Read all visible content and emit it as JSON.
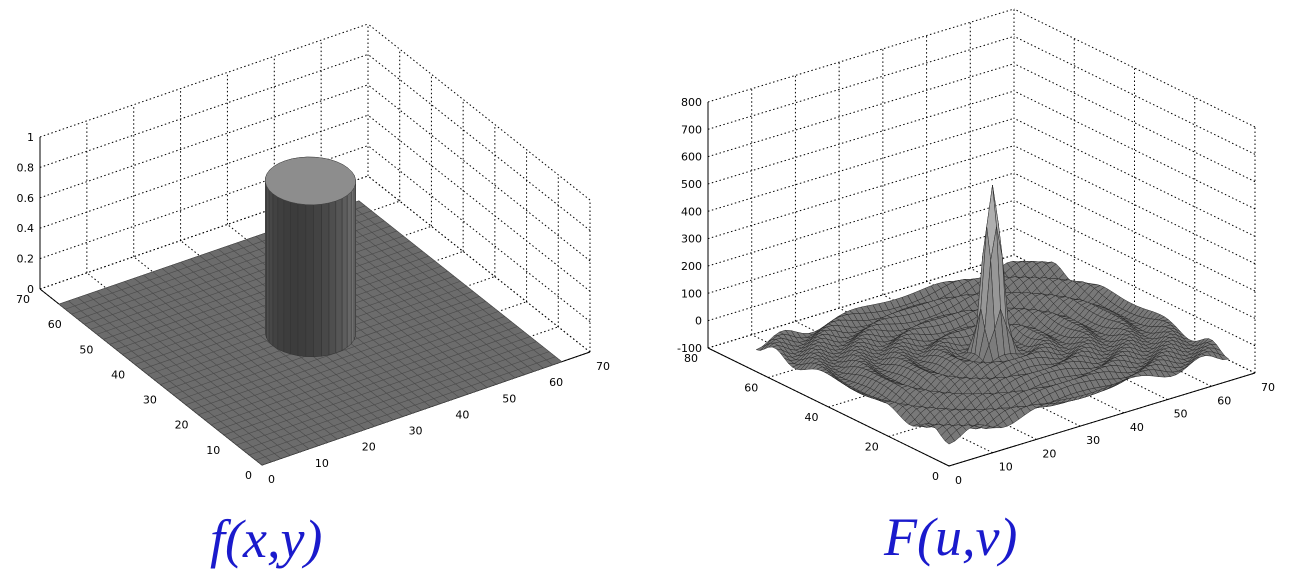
{
  "chart_data": [
    {
      "type": "surface",
      "caption": "f(x,y)",
      "x_ticks": [
        "0",
        "10",
        "20",
        "30",
        "40",
        "50",
        "60",
        "70"
      ],
      "y_ticks": [
        "0",
        "10",
        "20",
        "30",
        "40",
        "50",
        "60",
        "70"
      ],
      "z_ticks": [
        "0",
        "0.2",
        "0.4",
        "0.6",
        "0.8",
        "1"
      ],
      "xlim": [
        0,
        70
      ],
      "ylim": [
        0,
        70
      ],
      "zlim": [
        0,
        1
      ],
      "grid": true,
      "surface": {
        "shape": "cylinder",
        "center": [
          32,
          32
        ],
        "radius": 8,
        "height": 1,
        "base_extent": [
          0,
          64
        ]
      },
      "colors": {
        "surface": "#6c6c6c",
        "grid": "#000000"
      }
    },
    {
      "type": "surface",
      "caption": "F(u,v)",
      "x_ticks": [
        "0",
        "10",
        "20",
        "30",
        "40",
        "50",
        "60",
        "70"
      ],
      "y_ticks": [
        "0",
        "20",
        "40",
        "60",
        "80"
      ],
      "z_ticks": [
        "-100",
        "0",
        "100",
        "200",
        "300",
        "400",
        "500",
        "600",
        "700",
        "800"
      ],
      "xlim": [
        0,
        70
      ],
      "ylim": [
        0,
        80
      ],
      "zlim": [
        -100,
        800
      ],
      "grid": true,
      "surface": {
        "shape": "sinc_peak",
        "center": [
          32,
          32
        ],
        "peak": 600,
        "ripple_amplitude": 20,
        "base_extent": [
          0,
          64
        ]
      },
      "colors": {
        "surface": "#8a8a8a",
        "grid": "#000000"
      }
    }
  ]
}
